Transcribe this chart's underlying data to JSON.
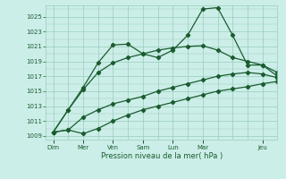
{
  "title": "",
  "xlabel": "Pression niveau de la mer( hPa )",
  "ylabel": "",
  "bg_color": "#cceee8",
  "grid_color": "#99ccbb",
  "line_color": "#1a5c30",
  "x_major_labels": [
    "Dim",
    "Mer",
    "Ven",
    "Sam",
    "Lun",
    "Mar",
    "Jeu"
  ],
  "x_major_pos": [
    0,
    2,
    4,
    6,
    8,
    10,
    14
  ],
  "xlim": [
    -0.5,
    15.0
  ],
  "ylim": [
    1008.5,
    1026.5
  ],
  "yticks": [
    1009,
    1011,
    1013,
    1015,
    1017,
    1019,
    1021,
    1023,
    1025
  ],
  "series": [
    [
      1009.5,
      1009.8,
      1009.3,
      1010.0,
      1011.0,
      1011.8,
      1012.5,
      1013.0,
      1013.5,
      1014.0,
      1014.5,
      1015.0,
      1015.3,
      1015.6,
      1016.0,
      1016.3
    ],
    [
      1009.5,
      1009.8,
      1011.5,
      1012.5,
      1013.3,
      1013.8,
      1014.3,
      1015.0,
      1015.5,
      1016.0,
      1016.5,
      1017.0,
      1017.3,
      1017.5,
      1017.3,
      1016.8
    ],
    [
      1009.5,
      1012.5,
      1015.2,
      1017.5,
      1018.8,
      1019.5,
      1020.0,
      1020.5,
      1020.8,
      1021.0,
      1021.1,
      1020.5,
      1019.5,
      1019.0,
      1018.5,
      1017.5
    ],
    [
      1009.5,
      1012.5,
      1015.5,
      1018.8,
      1021.2,
      1021.3,
      1020.0,
      1019.5,
      1020.5,
      1022.5,
      1026.0,
      1026.2,
      1022.5,
      1018.5,
      1018.5,
      1017.0
    ]
  ],
  "x_positions": [
    0,
    1,
    2,
    3,
    4,
    5,
    6,
    7,
    8,
    9,
    10,
    11,
    12,
    13,
    14,
    15
  ],
  "minor_x_ticks": [
    0,
    1,
    2,
    3,
    4,
    5,
    6,
    7,
    8,
    9,
    10,
    11,
    12,
    13,
    14,
    15
  ]
}
